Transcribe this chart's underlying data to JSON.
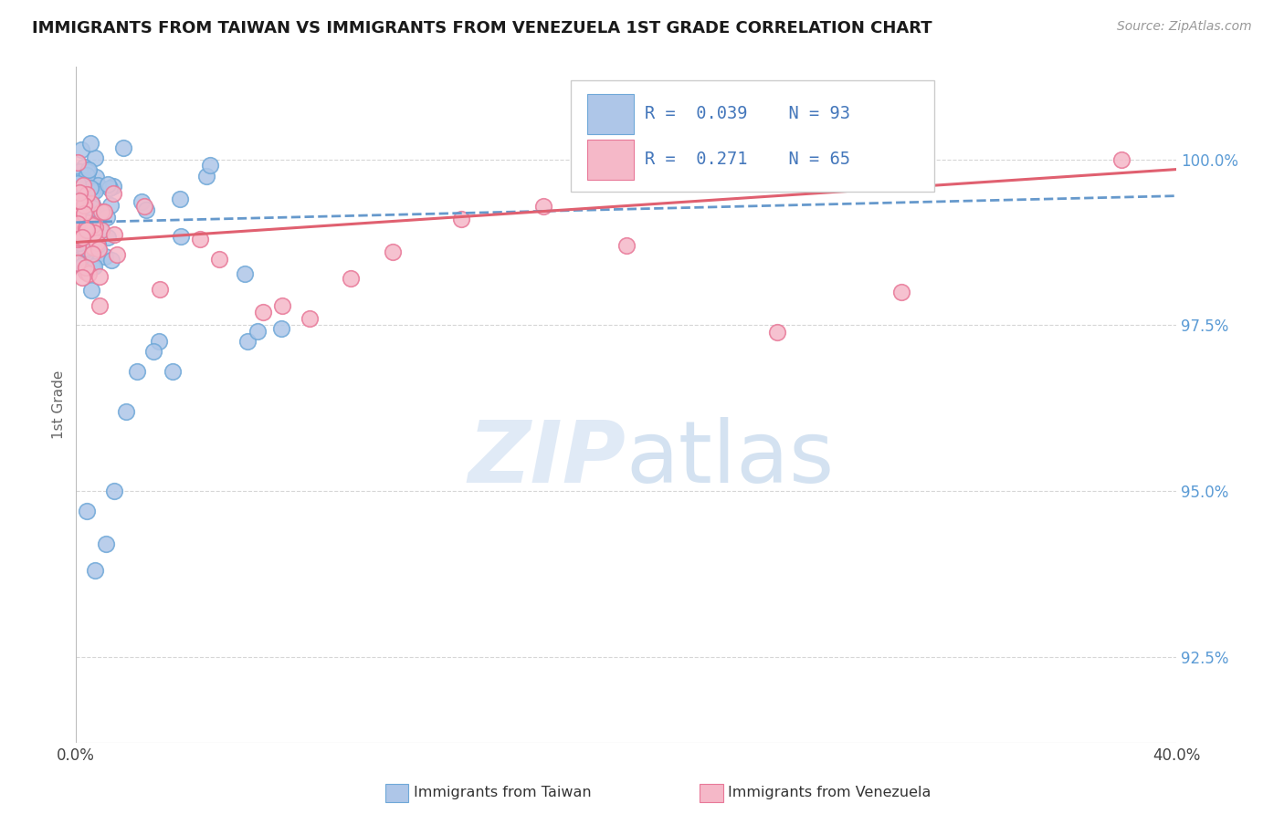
{
  "title": "IMMIGRANTS FROM TAIWAN VS IMMIGRANTS FROM VENEZUELA 1ST GRADE CORRELATION CHART",
  "source_text": "Source: ZipAtlas.com",
  "ylabel": "1st Grade",
  "xlim": [
    0.0,
    40.0
  ],
  "ylim": [
    91.2,
    101.4
  ],
  "xtick_positions": [
    0.0,
    10.0,
    20.0,
    30.0,
    40.0
  ],
  "xticklabels": [
    "0.0%",
    "",
    "",
    "",
    "40.0%"
  ],
  "ytick_positions": [
    92.5,
    95.0,
    97.5,
    100.0
  ],
  "ytick_labels": [
    "92.5%",
    "95.0%",
    "97.5%",
    "100.0%"
  ],
  "taiwan_color": "#aec6e8",
  "venezuela_color": "#f5b8c8",
  "taiwan_edge": "#6fa8d8",
  "venezuela_edge": "#e87898",
  "trend_taiwan_color": "#6699cc",
  "trend_venezuela_color": "#e06070",
  "legend_label_taiwan": "Immigrants from Taiwan",
  "legend_label_venezuela": "Immigrants from Venezuela",
  "watermark_zip": "ZIP",
  "watermark_atlas": "atlas",
  "background_color": "#ffffff",
  "trend_tw_x0": 0.0,
  "trend_tw_y0": 99.05,
  "trend_tw_x1": 40.0,
  "trend_tw_y1": 99.45,
  "trend_ven_x0": 0.0,
  "trend_ven_y0": 98.75,
  "trend_ven_x1": 40.0,
  "trend_ven_y1": 99.85
}
